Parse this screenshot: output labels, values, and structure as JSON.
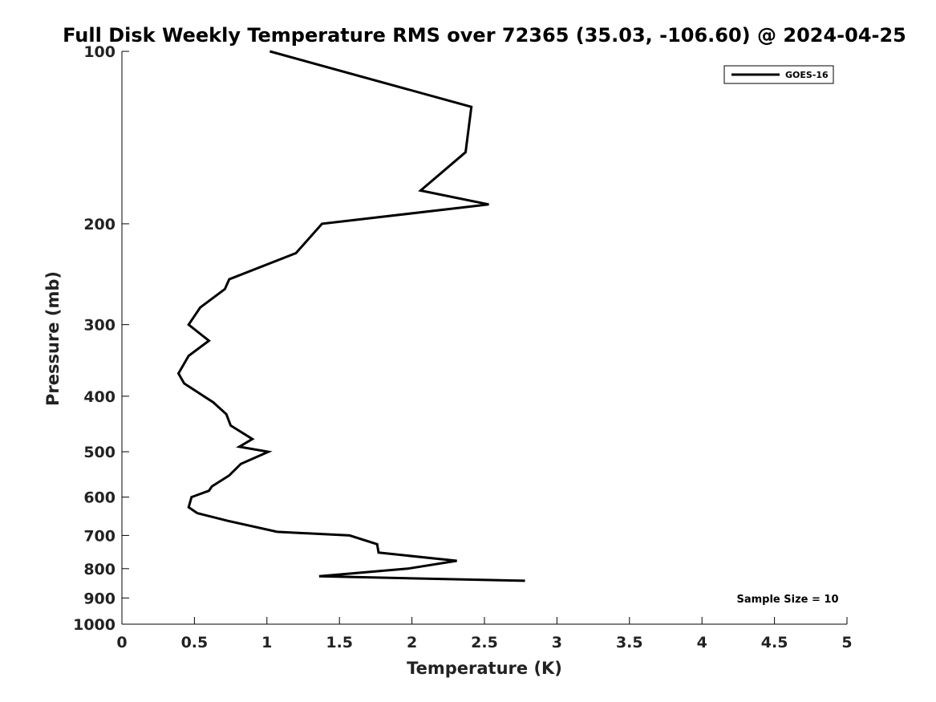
{
  "chart_data": {
    "type": "line",
    "title": "Full Disk Weekly Temperature RMS over 72365 (35.03, -106.60) @ 2024-04-25",
    "xlabel": "Temperature (K)",
    "ylabel": "Pressure (mb)",
    "xlim": [
      0,
      5
    ],
    "ylim": [
      1000,
      100
    ],
    "y_scale": "log",
    "y_reversed": true,
    "grid": false,
    "legend_position": "top-right",
    "x_ticks": [
      "0",
      "0.5",
      "1",
      "1.5",
      "2",
      "2.5",
      "3",
      "3.5",
      "4",
      "4.5",
      "5"
    ],
    "y_ticks": [
      "100",
      "200",
      "300",
      "400",
      "500",
      "600",
      "700",
      "800",
      "900",
      "1000"
    ],
    "annotation": "Sample Size = 10",
    "series": [
      {
        "name": "GOES-16",
        "color": "#000000",
        "points": [
          [
            1.02,
            100
          ],
          [
            2.41,
            125
          ],
          [
            2.37,
            150
          ],
          [
            2.06,
            175
          ],
          [
            2.53,
            185
          ],
          [
            1.38,
            200
          ],
          [
            1.2,
            225
          ],
          [
            0.74,
            250
          ],
          [
            0.71,
            260
          ],
          [
            0.54,
            280
          ],
          [
            0.46,
            300
          ],
          [
            0.6,
            320
          ],
          [
            0.46,
            340
          ],
          [
            0.39,
            365
          ],
          [
            0.43,
            380
          ],
          [
            0.63,
            410
          ],
          [
            0.72,
            430
          ],
          [
            0.75,
            450
          ],
          [
            0.9,
            475
          ],
          [
            0.81,
            490
          ],
          [
            1.01,
            500
          ],
          [
            0.82,
            525
          ],
          [
            0.74,
            550
          ],
          [
            0.62,
            575
          ],
          [
            0.6,
            585
          ],
          [
            0.48,
            600
          ],
          [
            0.46,
            625
          ],
          [
            0.52,
            640
          ],
          [
            0.73,
            660
          ],
          [
            1.07,
            690
          ],
          [
            1.57,
            700
          ],
          [
            1.76,
            725
          ],
          [
            1.77,
            750
          ],
          [
            2.31,
            775
          ],
          [
            1.97,
            800
          ],
          [
            1.36,
            825
          ],
          [
            2.78,
            840
          ]
        ]
      }
    ]
  }
}
